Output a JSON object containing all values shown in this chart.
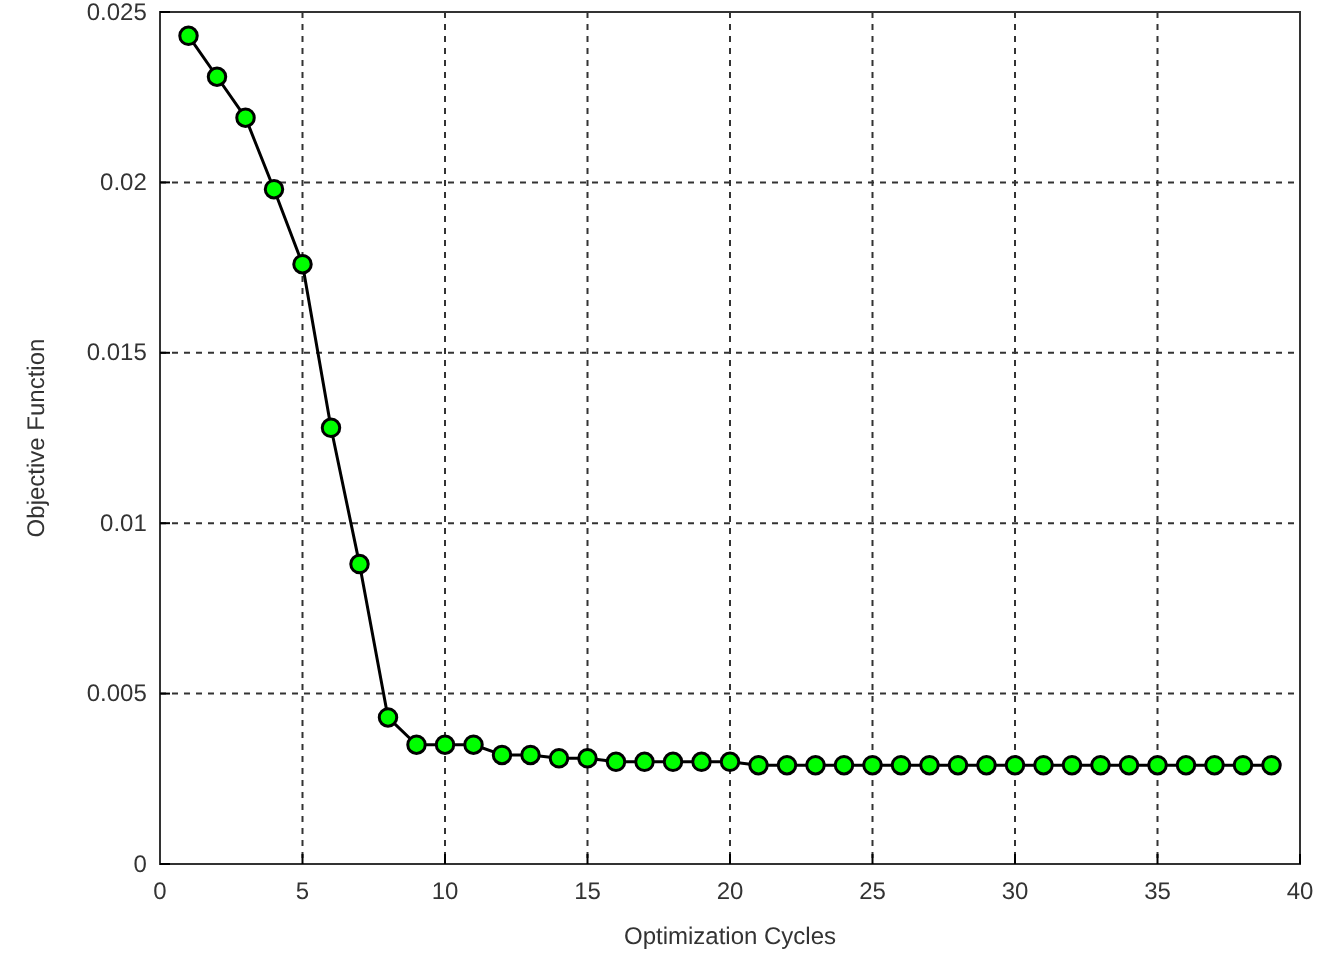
{
  "chart_data": {
    "type": "line",
    "xlabel": "Optimization Cycles",
    "ylabel": "Objective Function",
    "x": [
      1,
      2,
      3,
      4,
      5,
      6,
      7,
      8,
      9,
      10,
      11,
      12,
      13,
      14,
      15,
      16,
      17,
      18,
      19,
      20,
      21,
      22,
      23,
      24,
      25,
      26,
      27,
      28,
      29,
      30,
      31,
      32,
      33,
      34,
      35,
      36,
      37,
      38,
      39
    ],
    "series": [
      {
        "color": "#00ff00",
        "values": [
          0.0243,
          0.0231,
          0.0219,
          0.0198,
          0.0176,
          0.0128,
          0.0088,
          0.0043,
          0.0035,
          0.0035,
          0.0035,
          0.0032,
          0.0032,
          0.0031,
          0.0031,
          0.003,
          0.003,
          0.003,
          0.003,
          0.003,
          0.0029,
          0.0029,
          0.0029,
          0.0029,
          0.0029,
          0.0029,
          0.0029,
          0.0029,
          0.0029,
          0.0029,
          0.0029,
          0.0029,
          0.0029,
          0.0029,
          0.0029,
          0.0029,
          0.0029,
          0.0029,
          0.0029
        ]
      }
    ],
    "xlim": [
      0,
      40
    ],
    "xticks": [
      0,
      5,
      10,
      15,
      20,
      25,
      30,
      35,
      40
    ],
    "ylim": [
      0,
      0.025
    ],
    "yticks": [
      0,
      0.005,
      0.01,
      0.015,
      0.02,
      0.025
    ],
    "grid": true,
    "marker": "circle",
    "line_style": "solid"
  }
}
